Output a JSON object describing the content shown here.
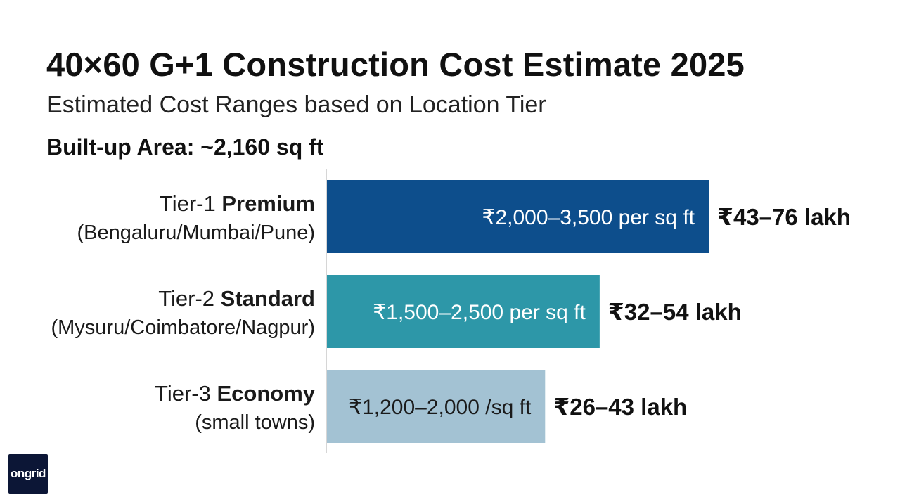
{
  "logo_text": "ongrid",
  "chart_data": {
    "type": "bar",
    "orientation": "horizontal",
    "title": "40×60 G+1 Construction Cost Estimate 2025",
    "subtitle": "Estimated Cost Ranges based on Location Tier",
    "note": "Built-up Area: ~2,160 sq ft",
    "unit": "₹ per sq ft",
    "categories": [
      {
        "prefix": "Tier-1",
        "name": "Premium",
        "sub": "(Bengaluru/Mumbai/Pune)",
        "low": 2000,
        "high": 3500,
        "bar_label": "₹2,000–3,500 per sq ft",
        "total_label": "₹43–76 lakh",
        "color": "#0d4e8c"
      },
      {
        "prefix": "Tier-2",
        "name": "Standard",
        "sub": "(Mysuru/Coimbatore/Nagpur)",
        "low": 1500,
        "high": 2500,
        "bar_label": "₹1,500–2,500 per sq ft",
        "total_label": "₹32–54 lakh",
        "color": "#2d97a8"
      },
      {
        "prefix": "Tier-3",
        "name": "Economy",
        "sub": "(small towns)",
        "low": 1200,
        "high": 2000,
        "bar_label": "₹1,200–2,000 /sq ft",
        "total_label": "₹26–43 lakh",
        "color": "#a3c2d3"
      }
    ]
  }
}
